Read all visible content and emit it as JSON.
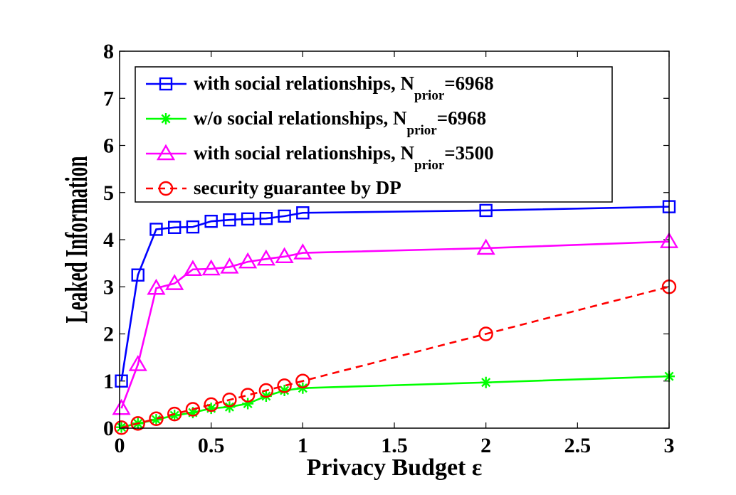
{
  "chart_data": {
    "type": "line",
    "xlabel": "Privacy Budget ε",
    "ylabel": "Leaked Information",
    "xlim": [
      0,
      3
    ],
    "ylim": [
      0,
      8
    ],
    "x_ticks": [
      "0",
      "0.5",
      "1",
      "1.5",
      "2",
      "2.5",
      "3"
    ],
    "y_ticks": [
      "0",
      "1",
      "2",
      "3",
      "4",
      "5",
      "6",
      "7",
      "8"
    ],
    "x_tick_values": [
      0,
      0.5,
      1,
      1.5,
      2,
      2.5,
      3
    ],
    "y_tick_values": [
      0,
      1,
      2,
      3,
      4,
      5,
      6,
      7,
      8
    ],
    "grid": false,
    "legend_position": "top-left",
    "series": [
      {
        "name": "with social relationships, N",
        "name_subscript": "prior",
        "name_suffix": "=6968",
        "color": "#0000ff",
        "marker": "square",
        "line_style": "solid",
        "x": [
          0.01,
          0.1,
          0.2,
          0.3,
          0.4,
          0.5,
          0.6,
          0.7,
          0.8,
          0.9,
          1,
          2,
          3
        ],
        "y": [
          1.0,
          3.25,
          4.22,
          4.26,
          4.27,
          4.39,
          4.42,
          4.44,
          4.45,
          4.5,
          4.57,
          4.62,
          4.7
        ]
      },
      {
        "name": "w/o social relationships, N",
        "name_subscript": "prior",
        "name_suffix": "=6968",
        "color": "#00ff00",
        "marker": "asterisk",
        "line_style": "solid",
        "x": [
          0.01,
          0.1,
          0.2,
          0.3,
          0.4,
          0.5,
          0.6,
          0.7,
          0.8,
          0.9,
          1,
          2,
          3
        ],
        "y": [
          0.02,
          0.1,
          0.18,
          0.27,
          0.33,
          0.42,
          0.45,
          0.52,
          0.68,
          0.8,
          0.85,
          0.97,
          1.1
        ]
      },
      {
        "name": "with social relationships, N",
        "name_subscript": "prior",
        "name_suffix": "=3500",
        "color": "#ff00ff",
        "marker": "triangle",
        "line_style": "solid",
        "x": [
          0.01,
          0.1,
          0.2,
          0.3,
          0.4,
          0.5,
          0.6,
          0.7,
          0.8,
          0.9,
          1,
          2,
          3
        ],
        "y": [
          0.42,
          1.35,
          2.97,
          3.07,
          3.37,
          3.38,
          3.42,
          3.53,
          3.59,
          3.64,
          3.72,
          3.82,
          3.96
        ]
      },
      {
        "name": "security guarantee by DP",
        "color": "#ff0000",
        "marker": "circle",
        "line_style": "dashed",
        "x": [
          0.01,
          0.1,
          0.2,
          0.3,
          0.4,
          0.5,
          0.6,
          0.7,
          0.8,
          0.9,
          1,
          2,
          3
        ],
        "y": [
          0.01,
          0.1,
          0.2,
          0.3,
          0.4,
          0.5,
          0.6,
          0.7,
          0.8,
          0.9,
          1,
          2,
          3
        ]
      }
    ]
  }
}
